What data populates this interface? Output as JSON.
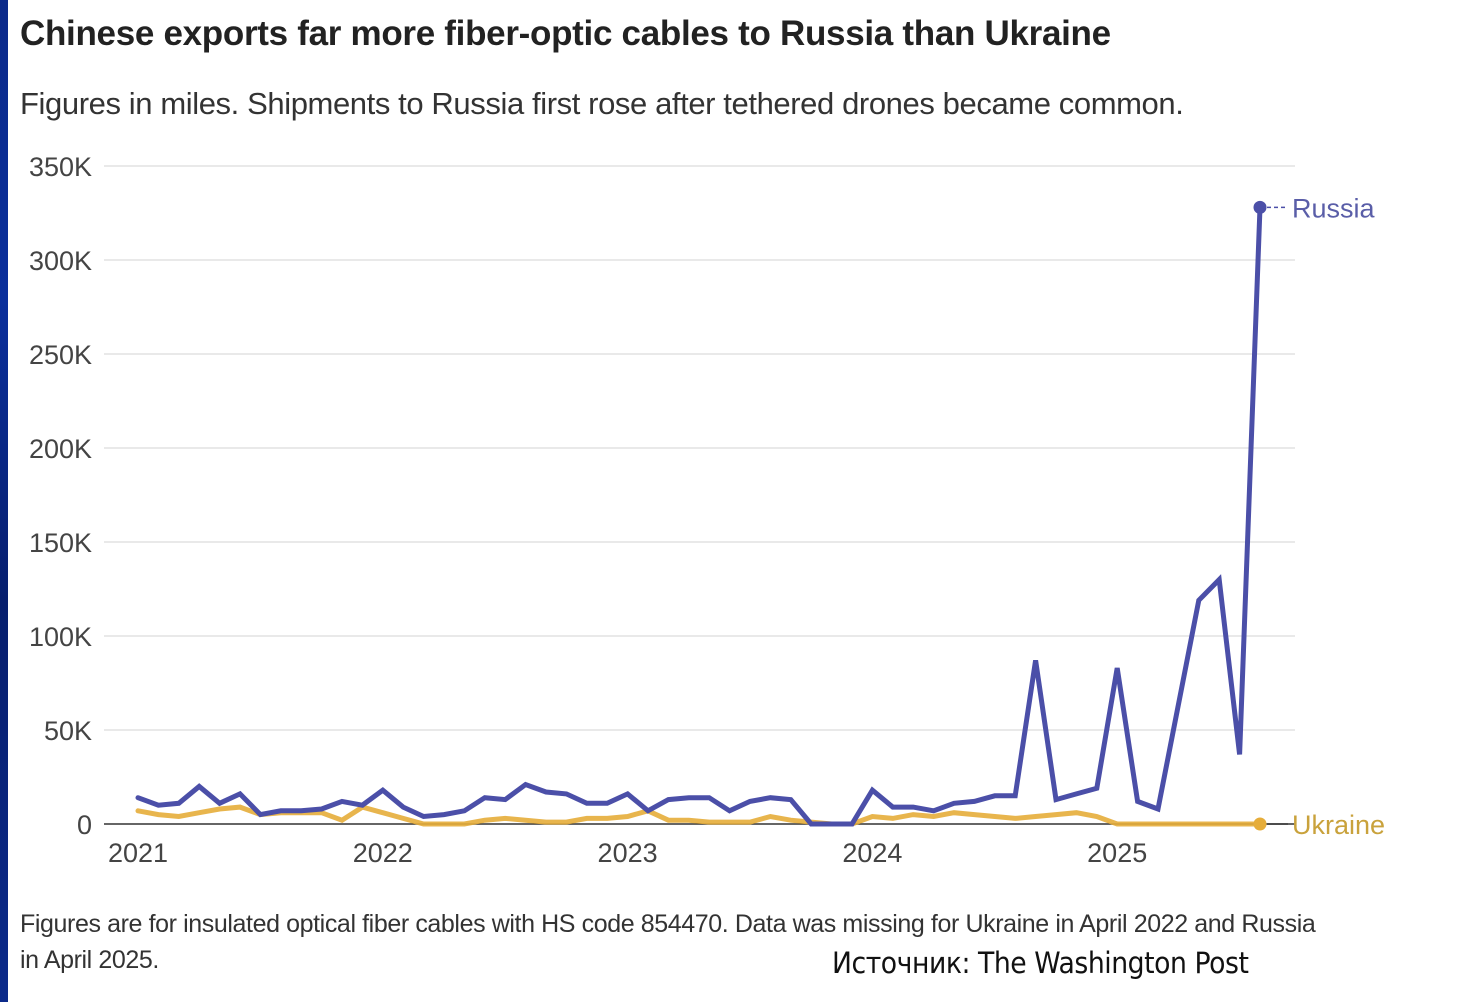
{
  "chart_data": {
    "type": "line",
    "title": "Chinese exports far more fiber-optic cables to Russia than Ukraine",
    "subtitle": "Figures in miles. Shipments to Russia first rose after tethered drones became common.",
    "xlabel": "",
    "ylabel": "",
    "ylim": [
      0,
      350000
    ],
    "yticks": [
      0,
      50000,
      100000,
      150000,
      200000,
      250000,
      300000,
      350000
    ],
    "ytick_labels": [
      "0",
      "50K",
      "100K",
      "150K",
      "200K",
      "250K",
      "300K",
      "350K"
    ],
    "xticks": [
      "2021",
      "2022",
      "2023",
      "2024",
      "2025"
    ],
    "x_start": "2021-01",
    "x_unit": "month",
    "grid": true,
    "legend": "inline-end-labels",
    "series": [
      {
        "name": "Russia",
        "label": "Russia",
        "color": "#4b4fa8",
        "values": [
          14000,
          10000,
          11000,
          20000,
          11000,
          16000,
          5000,
          7000,
          7000,
          8000,
          12000,
          10000,
          18000,
          9000,
          4000,
          5000,
          7000,
          14000,
          13000,
          21000,
          17000,
          16000,
          11000,
          11000,
          16000,
          7000,
          13000,
          14000,
          14000,
          7000,
          12000,
          14000,
          13000,
          0,
          0,
          0,
          18000,
          9000,
          9000,
          7000,
          11000,
          12000,
          15000,
          15000,
          87000,
          13000,
          16000,
          19000,
          83000,
          12000,
          8000,
          null,
          119000,
          130000,
          37000,
          328000
        ]
      },
      {
        "name": "Ukraine",
        "label": "Ukraine",
        "color": "#e6ad3a",
        "values": [
          7000,
          5000,
          4000,
          6000,
          8000,
          9000,
          5000,
          6000,
          6000,
          6000,
          2000,
          9000,
          6000,
          3000,
          0,
          null,
          0,
          2000,
          3000,
          2000,
          1000,
          1000,
          3000,
          3000,
          4000,
          7000,
          2000,
          2000,
          1000,
          1000,
          1000,
          4000,
          2000,
          1000,
          0,
          0,
          4000,
          3000,
          5000,
          4000,
          6000,
          5000,
          4000,
          3000,
          4000,
          5000,
          6000,
          4000,
          0,
          0,
          0,
          0,
          0,
          0,
          0,
          0
        ]
      }
    ],
    "notes": "Figures are for insulated optical fiber cables with HS code 854470. Data was missing for Ukraine in April 2022 and Russia in April 2025.",
    "source": "Источник: The Washington Post"
  }
}
